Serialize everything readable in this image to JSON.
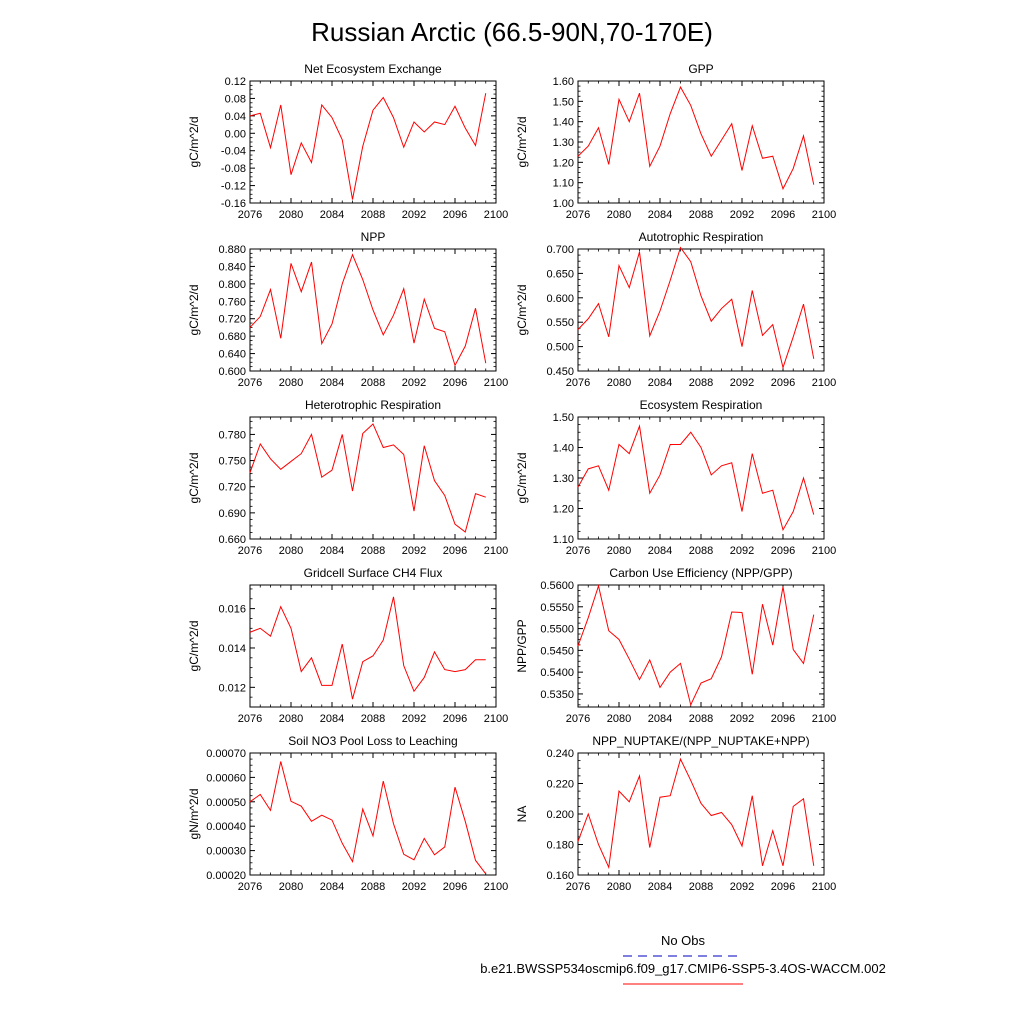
{
  "figure": {
    "title": "Russian Arctic (66.5-90N,70-170E)",
    "legend": {
      "obs_label": "No Obs",
      "obs_color": "#3333cc",
      "run_label": "b.e21.BWSSP534oscmip6.f09_g17.CMIP6-SSP5-3.4OS-WACCM.002",
      "run_color": "#ff0000"
    }
  },
  "chart_data": [
    {
      "type": "line",
      "title": "Net Ecosystem Exchange",
      "ylabel": "gC/m^2/d",
      "xlabel": "",
      "xlim": [
        2076,
        2100
      ],
      "ylim": [
        -0.16,
        0.12
      ],
      "xticks": [
        2076,
        2080,
        2084,
        2088,
        2092,
        2096,
        2100
      ],
      "xtick_labels": [
        "2076",
        "2080",
        "2084",
        "2088",
        "2092",
        "2096",
        "2100"
      ],
      "yticks": [
        -0.16,
        -0.12,
        -0.08,
        -0.04,
        0.0,
        0.04,
        0.08,
        0.12
      ],
      "ytick_labels": [
        "-0.16",
        "-0.12",
        "-0.08",
        "-0.04",
        "0.00",
        "0.04",
        "0.08",
        "0.12"
      ],
      "color": "#ff0000",
      "x": [
        2076,
        2077,
        2078,
        2079,
        2080,
        2081,
        2082,
        2083,
        2084,
        2085,
        2086,
        2087,
        2088,
        2089,
        2090,
        2091,
        2092,
        2093,
        2094,
        2095,
        2096,
        2097,
        2098,
        2099
      ],
      "y": [
        0.04,
        0.046,
        -0.033,
        0.065,
        -0.095,
        -0.022,
        -0.067,
        0.065,
        0.036,
        -0.015,
        -0.152,
        -0.03,
        0.053,
        0.082,
        0.036,
        -0.032,
        0.026,
        0.003,
        0.026,
        0.02,
        0.062,
        0.012,
        -0.028,
        0.092
      ]
    },
    {
      "type": "line",
      "title": "GPP",
      "ylabel": "gC/m^2/d",
      "xlabel": "",
      "xlim": [
        2076,
        2100
      ],
      "ylim": [
        1.0,
        1.6
      ],
      "xticks": [
        2076,
        2080,
        2084,
        2088,
        2092,
        2096,
        2100
      ],
      "xtick_labels": [
        "2076",
        "2080",
        "2084",
        "2088",
        "2092",
        "2096",
        "2100"
      ],
      "yticks": [
        1.0,
        1.1,
        1.2,
        1.3,
        1.4,
        1.5,
        1.6
      ],
      "ytick_labels": [
        "1.00",
        "1.10",
        "1.20",
        "1.30",
        "1.40",
        "1.50",
        "1.60"
      ],
      "color": "#ff0000",
      "x": [
        2076,
        2077,
        2078,
        2079,
        2080,
        2081,
        2082,
        2083,
        2084,
        2085,
        2086,
        2087,
        2088,
        2089,
        2090,
        2091,
        2092,
        2093,
        2094,
        2095,
        2096,
        2097,
        2098,
        2099
      ],
      "y": [
        1.23,
        1.28,
        1.37,
        1.19,
        1.51,
        1.4,
        1.54,
        1.18,
        1.28,
        1.44,
        1.57,
        1.48,
        1.34,
        1.23,
        1.31,
        1.39,
        1.16,
        1.38,
        1.22,
        1.23,
        1.07,
        1.17,
        1.33,
        1.09
      ]
    },
    {
      "type": "line",
      "title": "NPP",
      "ylabel": "gC/m^2/d",
      "xlabel": "",
      "xlim": [
        2076,
        2100
      ],
      "ylim": [
        0.6,
        0.88
      ],
      "xticks": [
        2076,
        2080,
        2084,
        2088,
        2092,
        2096,
        2100
      ],
      "xtick_labels": [
        "2076",
        "2080",
        "2084",
        "2088",
        "2092",
        "2096",
        "2100"
      ],
      "yticks": [
        0.6,
        0.64,
        0.68,
        0.72,
        0.76,
        0.8,
        0.84,
        0.88
      ],
      "ytick_labels": [
        "0.600",
        "0.640",
        "0.680",
        "0.720",
        "0.760",
        "0.800",
        "0.840",
        "0.880"
      ],
      "color": "#ff0000",
      "x": [
        2076,
        2077,
        2078,
        2079,
        2080,
        2081,
        2082,
        2083,
        2084,
        2085,
        2086,
        2087,
        2088,
        2089,
        2090,
        2091,
        2092,
        2093,
        2094,
        2095,
        2096,
        2097,
        2098,
        2099
      ],
      "y": [
        0.7,
        0.725,
        0.787,
        0.675,
        0.847,
        0.782,
        0.85,
        0.663,
        0.708,
        0.8,
        0.867,
        0.81,
        0.74,
        0.683,
        0.728,
        0.789,
        0.664,
        0.765,
        0.698,
        0.69,
        0.613,
        0.657,
        0.744,
        0.618
      ]
    },
    {
      "type": "line",
      "title": "Autotrophic Respiration",
      "ylabel": "gC/m^2/d",
      "xlabel": "",
      "xlim": [
        2076,
        2100
      ],
      "ylim": [
        0.45,
        0.7
      ],
      "xticks": [
        2076,
        2080,
        2084,
        2088,
        2092,
        2096,
        2100
      ],
      "xtick_labels": [
        "2076",
        "2080",
        "2084",
        "2088",
        "2092",
        "2096",
        "2100"
      ],
      "yticks": [
        0.45,
        0.5,
        0.55,
        0.6,
        0.65,
        0.7
      ],
      "ytick_labels": [
        "0.450",
        "0.500",
        "0.550",
        "0.600",
        "0.650",
        "0.700"
      ],
      "color": "#ff0000",
      "x": [
        2076,
        2077,
        2078,
        2079,
        2080,
        2081,
        2082,
        2083,
        2084,
        2085,
        2086,
        2087,
        2088,
        2089,
        2090,
        2091,
        2092,
        2093,
        2094,
        2095,
        2096,
        2097,
        2098,
        2099
      ],
      "y": [
        0.535,
        0.557,
        0.588,
        0.52,
        0.666,
        0.621,
        0.694,
        0.522,
        0.573,
        0.636,
        0.703,
        0.674,
        0.604,
        0.552,
        0.578,
        0.597,
        0.5,
        0.615,
        0.523,
        0.545,
        0.457,
        0.52,
        0.587,
        0.475
      ]
    },
    {
      "type": "line",
      "title": "Heterotrophic Respiration",
      "ylabel": "gC/m^2/d",
      "xlabel": "",
      "xlim": [
        2076,
        2100
      ],
      "ylim": [
        0.66,
        0.8
      ],
      "xticks": [
        2076,
        2080,
        2084,
        2088,
        2092,
        2096,
        2100
      ],
      "xtick_labels": [
        "2076",
        "2080",
        "2084",
        "2088",
        "2092",
        "2096",
        "2100"
      ],
      "yticks": [
        0.66,
        0.69,
        0.72,
        0.75,
        0.78
      ],
      "ytick_labels": [
        "0.660",
        "0.690",
        "0.720",
        "0.750",
        "0.780"
      ],
      "color": "#ff0000",
      "x": [
        2076,
        2077,
        2078,
        2079,
        2080,
        2081,
        2082,
        2083,
        2084,
        2085,
        2086,
        2087,
        2088,
        2089,
        2090,
        2091,
        2092,
        2093,
        2094,
        2095,
        2096,
        2097,
        2098,
        2099
      ],
      "y": [
        0.736,
        0.769,
        0.752,
        0.74,
        0.749,
        0.758,
        0.78,
        0.731,
        0.739,
        0.78,
        0.715,
        0.781,
        0.792,
        0.765,
        0.768,
        0.757,
        0.692,
        0.767,
        0.727,
        0.71,
        0.677,
        0.668,
        0.712,
        0.708
      ]
    },
    {
      "type": "line",
      "title": "Ecosystem Respiration",
      "ylabel": "gC/m^2/d",
      "xlabel": "",
      "xlim": [
        2076,
        2100
      ],
      "ylim": [
        1.1,
        1.5
      ],
      "xticks": [
        2076,
        2080,
        2084,
        2088,
        2092,
        2096,
        2100
      ],
      "xtick_labels": [
        "2076",
        "2080",
        "2084",
        "2088",
        "2092",
        "2096",
        "2100"
      ],
      "yticks": [
        1.1,
        1.2,
        1.3,
        1.4,
        1.5
      ],
      "ytick_labels": [
        "1.10",
        "1.20",
        "1.30",
        "1.40",
        "1.50"
      ],
      "color": "#ff0000",
      "x": [
        2076,
        2077,
        2078,
        2079,
        2080,
        2081,
        2082,
        2083,
        2084,
        2085,
        2086,
        2087,
        2088,
        2089,
        2090,
        2091,
        2092,
        2093,
        2094,
        2095,
        2096,
        2097,
        2098,
        2099
      ],
      "y": [
        1.27,
        1.33,
        1.34,
        1.26,
        1.41,
        1.38,
        1.47,
        1.25,
        1.31,
        1.41,
        1.41,
        1.45,
        1.4,
        1.31,
        1.34,
        1.35,
        1.19,
        1.38,
        1.25,
        1.26,
        1.13,
        1.19,
        1.3,
        1.18
      ]
    },
    {
      "type": "line",
      "title": "Gridcell Surface CH4 Flux",
      "ylabel": "gC/m^2/d",
      "xlabel": "",
      "xlim": [
        2076,
        2100
      ],
      "ylim": [
        0.011,
        0.0172
      ],
      "xticks": [
        2076,
        2080,
        2084,
        2088,
        2092,
        2096,
        2100
      ],
      "xtick_labels": [
        "2076",
        "2080",
        "2084",
        "2088",
        "2092",
        "2096",
        "2100"
      ],
      "yticks": [
        0.012,
        0.014,
        0.016
      ],
      "ytick_labels": [
        "0.012",
        "0.014",
        "0.016"
      ],
      "color": "#ff0000",
      "x": [
        2076,
        2077,
        2078,
        2079,
        2080,
        2081,
        2082,
        2083,
        2084,
        2085,
        2086,
        2087,
        2088,
        2089,
        2090,
        2091,
        2092,
        2093,
        2094,
        2095,
        2096,
        2097,
        2098,
        2099
      ],
      "y": [
        0.0148,
        0.015,
        0.0146,
        0.0161,
        0.015,
        0.0128,
        0.0135,
        0.0121,
        0.0121,
        0.0142,
        0.0114,
        0.0133,
        0.0136,
        0.0144,
        0.0166,
        0.0131,
        0.0118,
        0.0125,
        0.0138,
        0.0129,
        0.0128,
        0.0129,
        0.0134,
        0.0134
      ]
    },
    {
      "type": "line",
      "title": "Carbon Use Efficiency (NPP/GPP)",
      "ylabel": "NPP/GPP",
      "xlabel": "",
      "xlim": [
        2076,
        2100
      ],
      "ylim": [
        0.532,
        0.56
      ],
      "xticks": [
        2076,
        2080,
        2084,
        2088,
        2092,
        2096,
        2100
      ],
      "xtick_labels": [
        "2076",
        "2080",
        "2084",
        "2088",
        "2092",
        "2096",
        "2100"
      ],
      "yticks": [
        0.535,
        0.54,
        0.545,
        0.55,
        0.555,
        0.56
      ],
      "ytick_labels": [
        "0.5350",
        "0.5400",
        "0.5450",
        "0.5500",
        "0.5550",
        "0.5600"
      ],
      "color": "#ff0000",
      "x": [
        2076,
        2077,
        2078,
        2079,
        2080,
        2081,
        2082,
        2083,
        2084,
        2085,
        2086,
        2087,
        2088,
        2089,
        2090,
        2091,
        2092,
        2093,
        2094,
        2095,
        2096,
        2097,
        2098,
        2099
      ],
      "y": [
        0.546,
        0.5525,
        0.5598,
        0.5495,
        0.5475,
        0.543,
        0.5383,
        0.5428,
        0.5365,
        0.54,
        0.542,
        0.5325,
        0.5375,
        0.5385,
        0.5435,
        0.5538,
        0.5537,
        0.5395,
        0.5556,
        0.5462,
        0.5596,
        0.5452,
        0.542,
        0.5532
      ]
    },
    {
      "type": "line",
      "title": "Soil NO3 Pool Loss to Leaching",
      "ylabel": "gN/m^2/d",
      "xlabel": "",
      "xlim": [
        2076,
        2100
      ],
      "ylim": [
        0.0002,
        0.0007
      ],
      "xticks": [
        2076,
        2080,
        2084,
        2088,
        2092,
        2096,
        2100
      ],
      "xtick_labels": [
        "2076",
        "2080",
        "2084",
        "2088",
        "2092",
        "2096",
        "2100"
      ],
      "yticks": [
        0.0002,
        0.0003,
        0.0004,
        0.0005,
        0.0006,
        0.0007
      ],
      "ytick_labels": [
        "0.00020",
        "0.00030",
        "0.00040",
        "0.00050",
        "0.00060",
        "0.00070"
      ],
      "color": "#ff0000",
      "x": [
        2076,
        2077,
        2078,
        2079,
        2080,
        2081,
        2082,
        2083,
        2084,
        2085,
        2086,
        2087,
        2088,
        2089,
        2090,
        2091,
        2092,
        2093,
        2094,
        2095,
        2096,
        2097,
        2098,
        2099
      ],
      "y": [
        0.0005,
        0.00053,
        0.000465,
        0.000665,
        0.000502,
        0.000482,
        0.00042,
        0.000445,
        0.000425,
        0.00033,
        0.000255,
        0.00047,
        0.00036,
        0.000585,
        0.00041,
        0.000285,
        0.000262,
        0.00035,
        0.000283,
        0.000315,
        0.00056,
        0.00042,
        0.00026,
        0.000205
      ]
    },
    {
      "type": "line",
      "title": "NPP_NUPTAKE/(NPP_NUPTAKE+NPP)",
      "ylabel": "NA",
      "xlabel": "",
      "xlim": [
        2076,
        2100
      ],
      "ylim": [
        0.16,
        0.24
      ],
      "xticks": [
        2076,
        2080,
        2084,
        2088,
        2092,
        2096,
        2100
      ],
      "xtick_labels": [
        "2076",
        "2080",
        "2084",
        "2088",
        "2092",
        "2096",
        "2100"
      ],
      "yticks": [
        0.16,
        0.18,
        0.2,
        0.22,
        0.24
      ],
      "ytick_labels": [
        "0.160",
        "0.180",
        "0.200",
        "0.220",
        "0.240"
      ],
      "color": "#ff0000",
      "x": [
        2076,
        2077,
        2078,
        2079,
        2080,
        2081,
        2082,
        2083,
        2084,
        2085,
        2086,
        2087,
        2088,
        2089,
        2090,
        2091,
        2092,
        2093,
        2094,
        2095,
        2096,
        2097,
        2098,
        2099
      ],
      "y": [
        0.182,
        0.2,
        0.18,
        0.165,
        0.215,
        0.208,
        0.225,
        0.178,
        0.211,
        0.212,
        0.236,
        0.222,
        0.207,
        0.199,
        0.201,
        0.193,
        0.179,
        0.212,
        0.166,
        0.189,
        0.166,
        0.205,
        0.21,
        0.166
      ]
    }
  ]
}
